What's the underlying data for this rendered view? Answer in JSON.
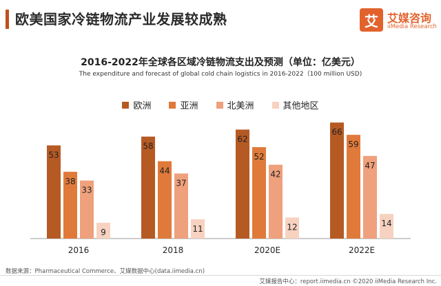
{
  "header": {
    "title": "欧美国家冷链物流产业发展较成熟",
    "logo_mark": "艾",
    "logo_cn": "艾媒咨询",
    "logo_en": "iiMedia Research",
    "accent_color": "#c0501e"
  },
  "chart_data": {
    "type": "bar",
    "title": "2016-2022年全球各区域冷链物流支出及预测（单位：亿美元）",
    "subtitle": "The expenditure and forecast of global cold chain logistics in 2016-2022（100 million USD)",
    "categories": [
      "2016",
      "2018",
      "2020E",
      "2022E"
    ],
    "series": [
      {
        "name": "欧洲",
        "color": "#b65a24",
        "values": [
          53,
          58,
          62,
          66
        ]
      },
      {
        "name": "亚洲",
        "color": "#e07a3a",
        "values": [
          38,
          44,
          52,
          59
        ]
      },
      {
        "name": "北美洲",
        "color": "#efa07c",
        "values": [
          33,
          37,
          42,
          47
        ]
      },
      {
        "name": "其他地区",
        "color": "#f7d2c0",
        "values": [
          9,
          11,
          12,
          14
        ]
      }
    ],
    "ylim": [
      0,
      70
    ],
    "xlabel": "",
    "ylabel": "",
    "legend_position": "top-center",
    "grid": false
  },
  "footer": {
    "source": "数据来源：Pharmaceutical Commerce、艾媒数据中心(data.iimedia.cn)",
    "right": "艾媒报告中心：report.iimedia.cn ©2020 iiMedia Research Inc."
  }
}
